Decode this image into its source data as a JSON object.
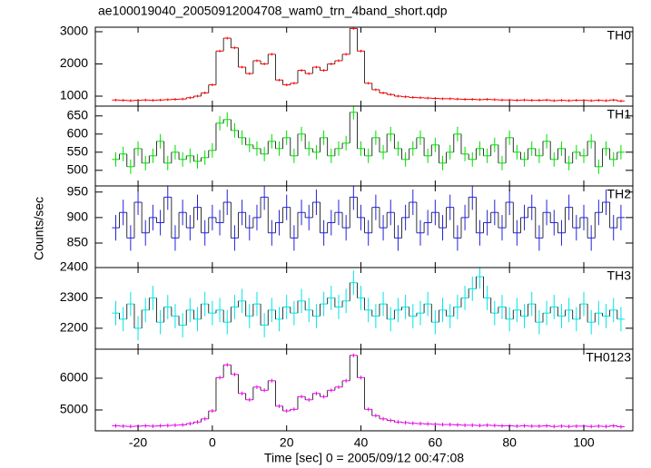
{
  "chart_data": {
    "type": "step",
    "title": "ae100019040_20050912004708_wam0_trn_4band_short.qdp",
    "xlabel": "Time [sec] 0 = 2005/09/12 00:47:08",
    "ylabel": "Counts/sec",
    "xlim": [
      -31.5,
      113.2
    ],
    "xticks": [
      -20,
      0,
      20,
      40,
      60,
      80,
      100
    ],
    "x": [
      -26,
      -24,
      -22,
      -20,
      -18,
      -16,
      -14,
      -12,
      -10,
      -8,
      -6,
      -4,
      -2,
      0,
      2,
      4,
      6,
      8,
      10,
      12,
      14,
      16,
      18,
      20,
      22,
      24,
      26,
      28,
      30,
      32,
      34,
      36,
      38,
      40,
      42,
      44,
      46,
      48,
      50,
      52,
      54,
      56,
      58,
      60,
      62,
      64,
      66,
      68,
      70,
      72,
      74,
      76,
      78,
      80,
      82,
      84,
      86,
      88,
      90,
      92,
      94,
      96,
      98,
      100,
      102,
      104,
      106,
      108,
      110
    ],
    "series": [
      {
        "name": "TH0",
        "color": "#ff0000",
        "error": 40,
        "ylim": [
          690,
          3140
        ],
        "yticks": [
          1000,
          2000,
          3000
        ],
        "values": [
          880,
          870,
          860,
          870,
          880,
          870,
          880,
          890,
          900,
          910,
          950,
          1000,
          1100,
          1350,
          2400,
          2800,
          2500,
          1900,
          1700,
          2100,
          2000,
          2300,
          1500,
          1350,
          1400,
          1800,
          1700,
          1900,
          1800,
          2000,
          2100,
          2300,
          3100,
          2400,
          1400,
          1200,
          1100,
          1050,
          1000,
          980,
          960,
          950,
          940,
          930,
          920,
          920,
          910,
          900,
          900,
          890,
          900,
          890,
          880,
          880,
          870,
          880,
          870,
          870,
          880,
          860,
          870,
          860,
          870,
          870,
          860,
          870,
          860,
          880,
          850
        ]
      },
      {
        "name": "TH1",
        "color": "#00dd00",
        "error": 20,
        "ylim": [
          457,
          677
        ],
        "yticks": [
          500,
          550,
          600,
          650
        ],
        "values": [
          530,
          545,
          510,
          560,
          520,
          540,
          580,
          520,
          550,
          530,
          540,
          525,
          535,
          555,
          630,
          640,
          610,
          590,
          570,
          560,
          545,
          580,
          560,
          590,
          540,
          600,
          560,
          550,
          590,
          540,
          560,
          575,
          660,
          560,
          540,
          590,
          550,
          600,
          560,
          530,
          560,
          590,
          540,
          570,
          520,
          550,
          600,
          545,
          530,
          560,
          540,
          570,
          520,
          590,
          550,
          530,
          560,
          540,
          580,
          530,
          560,
          520,
          550,
          540,
          580,
          510,
          560,
          530,
          550
        ]
      },
      {
        "name": "TH2",
        "color": "#2222dd",
        "error": 25,
        "ylim": [
          802,
          962
        ],
        "yticks": [
          850,
          900,
          950
        ],
        "values": [
          880,
          910,
          860,
          930,
          870,
          900,
          890,
          940,
          860,
          910,
          880,
          920,
          870,
          900,
          890,
          930,
          860,
          910,
          880,
          900,
          940,
          870,
          890,
          920,
          860,
          910,
          900,
          930,
          870,
          890,
          910,
          880,
          940,
          900,
          870,
          920,
          880,
          910,
          860,
          900,
          930,
          870,
          890,
          910,
          880,
          920,
          860,
          900,
          940,
          870,
          890,
          910,
          880,
          930,
          870,
          900,
          920,
          860,
          910,
          890,
          870,
          920,
          880,
          900,
          860,
          910,
          930,
          880,
          900
        ]
      },
      {
        "name": "TH3",
        "color": "#00e5e5",
        "error": 40,
        "ylim": [
          2131,
          2400
        ],
        "yticks": [
          2200,
          2300,
          2400
        ],
        "values": [
          2250,
          2230,
          2280,
          2200,
          2260,
          2300,
          2220,
          2270,
          2240,
          2210,
          2260,
          2230,
          2280,
          2250,
          2260,
          2220,
          2270,
          2290,
          2240,
          2280,
          2210,
          2260,
          2230,
          2270,
          2250,
          2290,
          2260,
          2240,
          2280,
          2300,
          2270,
          2290,
          2350,
          2300,
          2260,
          2240,
          2280,
          2230,
          2260,
          2270,
          2240,
          2250,
          2280,
          2220,
          2260,
          2240,
          2270,
          2300,
          2330,
          2370,
          2300,
          2250,
          2270,
          2230,
          2260,
          2240,
          2280,
          2220,
          2250,
          2270,
          2240,
          2260,
          2230,
          2280,
          2220,
          2250,
          2240,
          2260,
          2230
        ]
      },
      {
        "name": "TH0123",
        "color": "#ee00ee",
        "error": 60,
        "ylim": [
          4343,
          6914
        ],
        "yticks": [
          5000,
          6000
        ],
        "values": [
          4500,
          4490,
          4480,
          4490,
          4500,
          4490,
          4500,
          4510,
          4520,
          4530,
          4570,
          4620,
          4720,
          4970,
          6020,
          6420,
          6120,
          5520,
          5320,
          5720,
          5620,
          5920,
          5120,
          4970,
          5020,
          5420,
          5320,
          5520,
          5420,
          5620,
          5720,
          5920,
          6720,
          6020,
          5020,
          4820,
          4720,
          4670,
          4620,
          4600,
          4580,
          4570,
          4560,
          4550,
          4540,
          4540,
          4530,
          4520,
          4520,
          4510,
          4520,
          4510,
          4500,
          4500,
          4490,
          4500,
          4490,
          4490,
          4500,
          4480,
          4490,
          4480,
          4490,
          4490,
          4480,
          4490,
          4480,
          4500,
          4470
        ]
      }
    ]
  }
}
